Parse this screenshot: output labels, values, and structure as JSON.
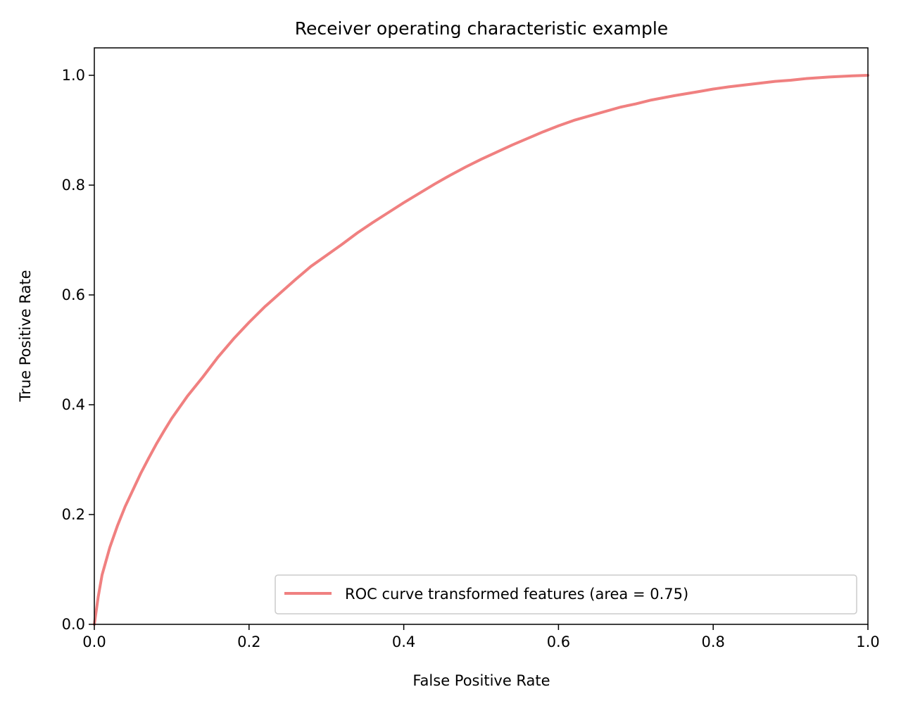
{
  "chart_data": {
    "type": "line",
    "title": "Receiver operating characteristic example",
    "xlabel": "False Positive Rate",
    "ylabel": "True Positive Rate",
    "xlim": [
      0.0,
      1.0
    ],
    "ylim": [
      0.0,
      1.05
    ],
    "x_ticks": [
      "0.0",
      "0.2",
      "0.4",
      "0.6",
      "0.8",
      "1.0"
    ],
    "y_ticks": [
      "0.0",
      "0.2",
      "0.4",
      "0.6",
      "0.8",
      "1.0"
    ],
    "grid": false,
    "legend_position": "lower right",
    "series": [
      {
        "name": "ROC curve transformed features (area = 0.75)",
        "color": "#f08080",
        "x": [
          0.0,
          0.005,
          0.01,
          0.02,
          0.03,
          0.04,
          0.05,
          0.06,
          0.07,
          0.08,
          0.09,
          0.1,
          0.12,
          0.14,
          0.16,
          0.18,
          0.2,
          0.22,
          0.24,
          0.26,
          0.28,
          0.3,
          0.32,
          0.34,
          0.36,
          0.38,
          0.4,
          0.42,
          0.44,
          0.46,
          0.48,
          0.5,
          0.52,
          0.54,
          0.56,
          0.58,
          0.6,
          0.62,
          0.65,
          0.68,
          0.7,
          0.72,
          0.75,
          0.78,
          0.8,
          0.82,
          0.85,
          0.88,
          0.9,
          0.92,
          0.95,
          0.98,
          1.0
        ],
        "y": [
          0.0,
          0.05,
          0.09,
          0.14,
          0.18,
          0.215,
          0.245,
          0.275,
          0.302,
          0.328,
          0.352,
          0.375,
          0.415,
          0.45,
          0.487,
          0.52,
          0.55,
          0.578,
          0.603,
          0.628,
          0.652,
          0.672,
          0.692,
          0.713,
          0.732,
          0.75,
          0.768,
          0.785,
          0.802,
          0.818,
          0.833,
          0.847,
          0.86,
          0.873,
          0.885,
          0.897,
          0.908,
          0.918,
          0.93,
          0.942,
          0.948,
          0.955,
          0.963,
          0.97,
          0.975,
          0.979,
          0.984,
          0.989,
          0.991,
          0.994,
          0.997,
          0.999,
          1.0
        ]
      }
    ]
  }
}
